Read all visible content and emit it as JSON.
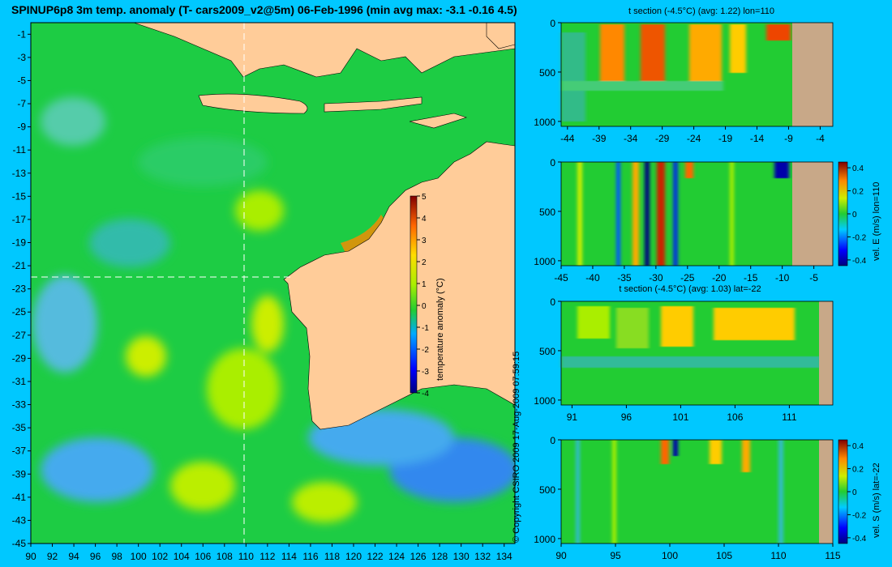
{
  "title": "SPINUP6p8 3m temp. anomaly (T- cars2009_v2@5m) 06-Feb-1996 (min avg max: -3.1 -0.16 4.5)",
  "copyright": "© Copyright CSIRO 2009  17-Aug-2009 07:59:15",
  "colors": {
    "background": "#00c8ff",
    "land": "#ffcc99",
    "section_land": "#c8a888",
    "ocean_neutral": "#22cc33",
    "crosshair": "#ffffff"
  },
  "chart_data": [
    {
      "type": "heatmap",
      "name_printed": "",
      "title": "SPINUP6p8 3m temp. anomaly (T- cars2009_v2@5m) 06-Feb-1996 (min avg max: -3.1 -0.16 4.5)",
      "x_ticks": [
        "90",
        "92",
        "94",
        "96",
        "98",
        "100",
        "102",
        "104",
        "106",
        "108",
        "110",
        "112",
        "114",
        "116",
        "118",
        "120",
        "122",
        "124",
        "126",
        "128",
        "130",
        "132",
        "134"
      ],
      "y_ticks": [
        "-1",
        "-3",
        "-5",
        "-7",
        "-9",
        "-11",
        "-13",
        "-15",
        "-17",
        "-19",
        "-21",
        "-23",
        "-25",
        "-27",
        "-29",
        "-31",
        "-33",
        "-35",
        "-37",
        "-39",
        "-41",
        "-43",
        "-45"
      ],
      "xlim": [
        90,
        135
      ],
      "ylim": [
        -45,
        0
      ],
      "crosshair": {
        "lon": 110,
        "lat": -22
      },
      "colorbar": {
        "label": "temperature anomaly (°C)",
        "ticks": [
          "5",
          "4",
          "3",
          "2",
          "1",
          "0",
          "-1",
          "-2",
          "-3",
          "-4"
        ],
        "range": [
          -4,
          5
        ]
      },
      "stats": {
        "min": -3.1,
        "avg": -0.16,
        "max": 4.5
      }
    },
    {
      "type": "heatmap",
      "title": "t section (-4.5°C) (avg: 1.22) lon=110",
      "x_ticks": [
        "-44",
        "-39",
        "-34",
        "-29",
        "-24",
        "-19",
        "-14",
        "-9",
        "-4"
      ],
      "y_ticks": [
        "0",
        "500",
        "1000"
      ],
      "xlim": [
        -45,
        -2
      ],
      "ylim": [
        0,
        1050
      ]
    },
    {
      "type": "heatmap",
      "title": "",
      "x_ticks": [
        "-45",
        "-40",
        "-35",
        "-30",
        "-25",
        "-20",
        "-15",
        "-10",
        "-5"
      ],
      "y_ticks": [
        "0",
        "500",
        "1000"
      ],
      "xlim": [
        -45,
        -2
      ],
      "ylim": [
        0,
        1050
      ],
      "colorbar": {
        "label": "vel. E (m/s) lon=110",
        "ticks": [
          "0.4",
          "0.2",
          "0",
          "-0.2",
          "-0.4"
        ],
        "range": [
          -0.45,
          0.45
        ]
      }
    },
    {
      "type": "heatmap",
      "title": "t section (-4.5°C) (avg: 1.03) lat=-22",
      "x_ticks": [
        "91",
        "96",
        "101",
        "106",
        "111"
      ],
      "y_ticks": [
        "0",
        "500",
        "1000"
      ],
      "xlim": [
        90,
        115
      ],
      "ylim": [
        0,
        1050
      ]
    },
    {
      "type": "heatmap",
      "title": "",
      "x_ticks": [
        "90",
        "95",
        "100",
        "105",
        "110",
        "115"
      ],
      "y_ticks": [
        "0",
        "500",
        "1000"
      ],
      "xlim": [
        90,
        115
      ],
      "ylim": [
        0,
        1050
      ],
      "colorbar": {
        "label": "vel. S (m/s) lat=-22",
        "ticks": [
          "0.4",
          "0.2",
          "0",
          "-0.2",
          "-0.4"
        ],
        "range": [
          -0.45,
          0.45
        ]
      }
    }
  ]
}
